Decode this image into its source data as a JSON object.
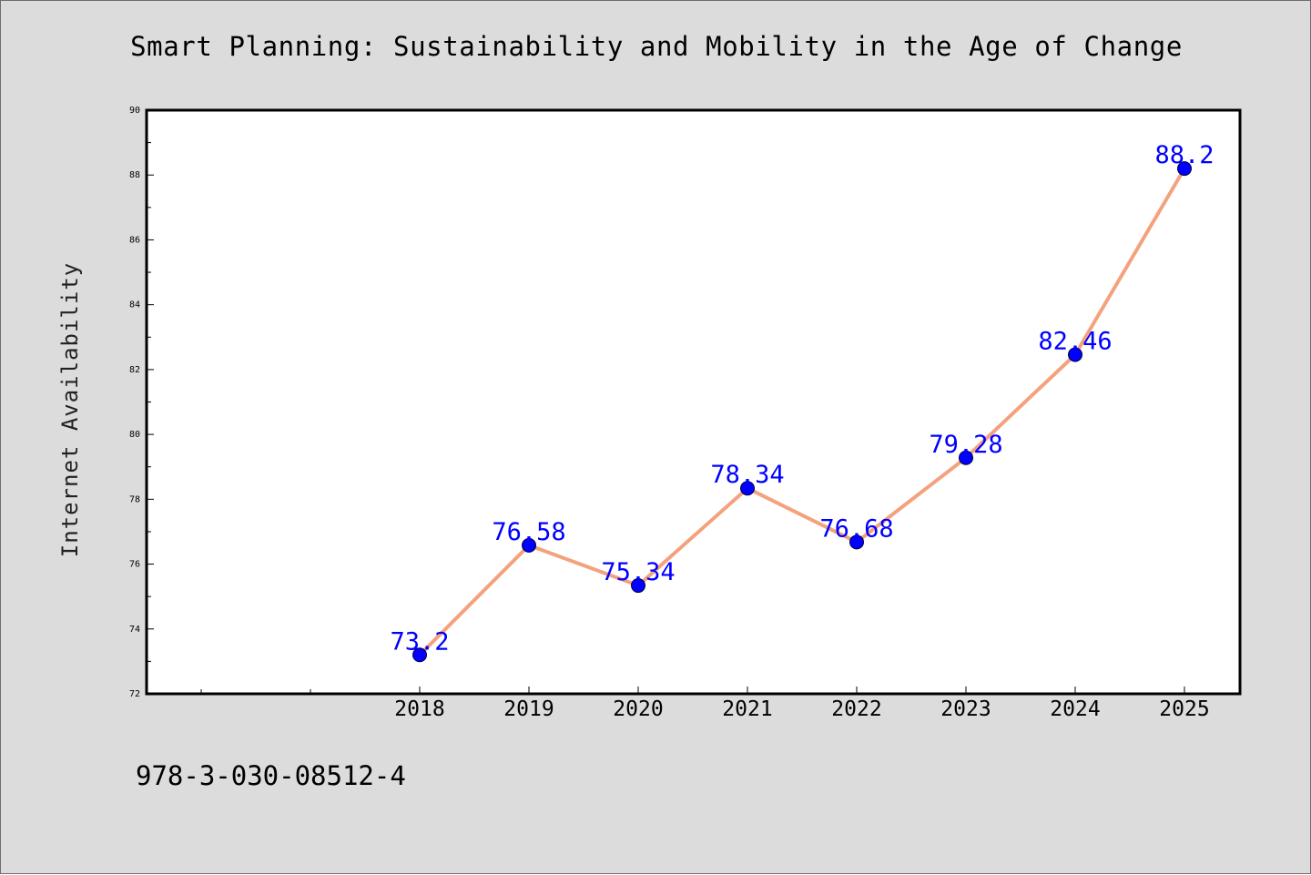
{
  "chart_data": {
    "type": "line",
    "title": "Smart Planning: Sustainability and Mobility in the Age of Change",
    "xlabel": "",
    "ylabel": "Internet Availability",
    "x": [
      "2018",
      "2019",
      "2020",
      "2021",
      "2022",
      "2023",
      "2024",
      "2025"
    ],
    "y": [
      73.2,
      76.58,
      75.34,
      78.34,
      76.68,
      79.28,
      82.46,
      88.2
    ],
    "data_labels": [
      "73.2",
      "76.58",
      "75.34",
      "78.34",
      "76.68",
      "79.28",
      "82.46",
      "88.2"
    ],
    "ylim": [
      72,
      90
    ],
    "yticks": [
      72,
      74,
      76,
      78,
      80,
      82,
      84,
      86,
      88,
      90
    ],
    "grid": false,
    "legend": "none",
    "colors": {
      "line": "#f4a27e",
      "marker": "#0000ff",
      "label": "#0000ff",
      "background": "#dcdcdc",
      "plot_background": "#ffffff"
    }
  },
  "footer": {
    "code": "978-3-030-08512-4"
  }
}
